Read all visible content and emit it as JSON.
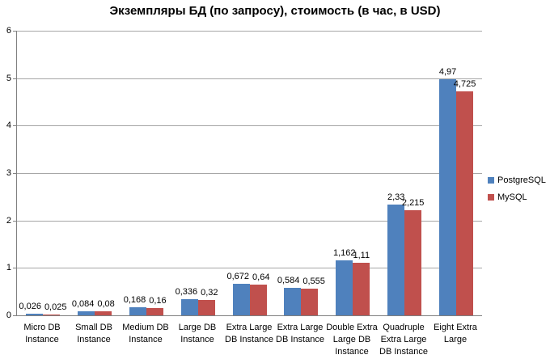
{
  "title": "Экземпляры БД (по запросу), стоимость (в час, в USD)",
  "chart_data": {
    "type": "bar",
    "title": "Экземпляры БД (по запросу), стоимость (в час, в USD)",
    "xlabel": "",
    "ylabel": "",
    "categories": [
      "Micro DB Instance",
      "Small DB Instance",
      "Medium DB Instance",
      "Large DB Instance",
      "Extra Large DB Instance",
      "Extra Large DB Instance",
      "Double Extra Large DB Instance",
      "Quadruple Extra Large DB Instance",
      "Eight Extra Large"
    ],
    "category_lines": [
      [
        "Micro DB",
        "Instance"
      ],
      [
        "Small DB",
        "Instance"
      ],
      [
        "Medium DB",
        "Instance"
      ],
      [
        "Large DB",
        "Instance"
      ],
      [
        "Extra Large",
        "DB Instance"
      ],
      [
        "Extra Large",
        "DB Instance"
      ],
      [
        "Double Extra",
        "Large DB",
        "Instance"
      ],
      [
        "Quadruple",
        "Extra Large",
        "DB Instance"
      ],
      [
        "Eight Extra",
        "Large"
      ]
    ],
    "series": [
      {
        "name": "PostgreSQL",
        "color": "#4F81BD",
        "values": [
          0.026,
          0.084,
          0.168,
          0.336,
          0.672,
          0.584,
          1.162,
          2.33,
          4.97
        ]
      },
      {
        "name": "MySQL",
        "color": "#C0504D",
        "values": [
          0.025,
          0.08,
          0.16,
          0.32,
          0.64,
          0.555,
          1.11,
          2.215,
          4.725
        ]
      }
    ],
    "data_labels_visible": true,
    "decimal_separator": ",",
    "ylim": [
      0,
      6
    ],
    "yticks": [
      0,
      1,
      2,
      3,
      4,
      5,
      6
    ],
    "grid": true,
    "legend_position": "right",
    "colors": {
      "axis": "#808080",
      "gridline": "#A6A6A6",
      "text": "#000000",
      "background": "#FFFFFF"
    }
  }
}
